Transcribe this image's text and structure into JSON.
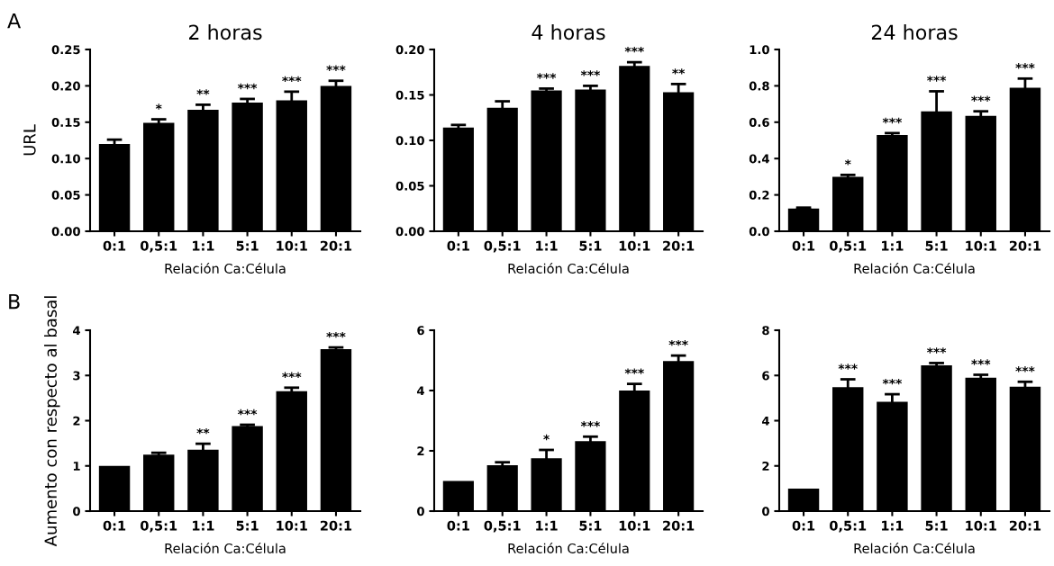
{
  "chart_data": [
    {
      "type": "bar",
      "title": "2 horas",
      "xlabel": "Relación Ca:Célula",
      "ylabel": "URL",
      "annotations": [
        "A"
      ],
      "categories": [
        "0:1",
        "0,5:1",
        "1:1",
        "5:1",
        "10:1",
        "20:1"
      ],
      "color": "#000000",
      "values": [
        0.12,
        0.149,
        0.167,
        0.177,
        0.18,
        0.2
      ],
      "errors": [
        0.006,
        0.005,
        0.007,
        0.005,
        0.012,
        0.007
      ],
      "value_labels": [
        null,
        "*",
        "**",
        "***",
        "***",
        "***"
      ],
      "ylim": [
        0,
        0.25
      ],
      "yticks": [
        {
          "value": 0,
          "label": "0.00"
        },
        {
          "value": 0.05,
          "label": "0.05"
        },
        {
          "value": 0.1,
          "label": "0.10"
        },
        {
          "value": 0.15,
          "label": "0.15"
        },
        {
          "value": 0.2,
          "label": "0.20"
        },
        {
          "value": 0.25,
          "label": "0.25"
        }
      ],
      "grid": false,
      "legend": false
    },
    {
      "type": "bar",
      "title": "4 horas",
      "xlabel": "Relación Ca:Célula",
      "categories": [
        "0:1",
        "0,5:1",
        "1:1",
        "5:1",
        "10:1",
        "20:1"
      ],
      "color": "#000000",
      "values": [
        0.114,
        0.136,
        0.155,
        0.156,
        0.182,
        0.153
      ],
      "errors": [
        0.003,
        0.007,
        0.002,
        0.004,
        0.004,
        0.009
      ],
      "value_labels": [
        null,
        null,
        "***",
        "***",
        "***",
        "**"
      ],
      "ylim": [
        0,
        0.2
      ],
      "yticks": [
        {
          "value": 0,
          "label": "0.00"
        },
        {
          "value": 0.05,
          "label": "0.05"
        },
        {
          "value": 0.1,
          "label": "0.10"
        },
        {
          "value": 0.15,
          "label": "0.15"
        },
        {
          "value": 0.2,
          "label": "0.20"
        }
      ],
      "grid": false,
      "legend": false
    },
    {
      "type": "bar",
      "title": "24 horas",
      "xlabel": "Relación Ca:Célula",
      "categories": [
        "0:1",
        "0,5:1",
        "1:1",
        "5:1",
        "10:1",
        "20:1"
      ],
      "color": "#000000",
      "values": [
        0.125,
        0.3,
        0.53,
        0.66,
        0.635,
        0.79
      ],
      "errors": [
        0.005,
        0.01,
        0.01,
        0.11,
        0.025,
        0.05
      ],
      "value_labels": [
        null,
        "*",
        "***",
        "***",
        "***",
        "***"
      ],
      "ylim": [
        0,
        1.0
      ],
      "yticks": [
        {
          "value": 0,
          "label": "0.0"
        },
        {
          "value": 0.2,
          "label": "0.2"
        },
        {
          "value": 0.4,
          "label": "0.4"
        },
        {
          "value": 0.6,
          "label": "0.6"
        },
        {
          "value": 0.8,
          "label": "0.8"
        },
        {
          "value": 1.0,
          "label": "1.0"
        }
      ],
      "grid": false,
      "legend": false
    },
    {
      "type": "bar",
      "xlabel": "Relación Ca:Célula",
      "ylabel": "Aumento con respecto al basal",
      "annotations": [
        "B"
      ],
      "categories": [
        "0:1",
        "0,5:1",
        "1:1",
        "5:1",
        "10:1",
        "20:1"
      ],
      "color": "#000000",
      "values": [
        1,
        1.25,
        1.36,
        1.88,
        2.65,
        3.58
      ],
      "errors": [
        null,
        0.04,
        0.13,
        0.03,
        0.08,
        0.04
      ],
      "value_labels": [
        null,
        null,
        "**",
        "***",
        "***",
        "***"
      ],
      "ylim": [
        0,
        4
      ],
      "yticks": [
        0,
        1,
        2,
        3,
        4
      ],
      "grid": false,
      "legend": false
    },
    {
      "type": "bar",
      "xlabel": "Relación Ca:Célula",
      "categories": [
        "0:1",
        "0,5:1",
        "1:1",
        "5:1",
        "10:1",
        "20:1"
      ],
      "color": "#000000",
      "values": [
        1,
        1.52,
        1.75,
        2.32,
        4.0,
        4.98
      ],
      "errors": [
        null,
        0.1,
        0.28,
        0.15,
        0.22,
        0.18
      ],
      "value_labels": [
        null,
        null,
        "*",
        "***",
        "***",
        "***"
      ],
      "ylim": [
        0,
        6
      ],
      "yticks": [
        0,
        2,
        4,
        6
      ],
      "grid": false,
      "legend": false
    },
    {
      "type": "bar",
      "xlabel": "Relación Ca:Célula",
      "categories": [
        "0:1",
        "0,5:1",
        "1:1",
        "5:1",
        "10:1",
        "20:1"
      ],
      "color": "#000000",
      "values": [
        1,
        5.48,
        4.84,
        6.45,
        5.9,
        5.5
      ],
      "errors": [
        null,
        0.35,
        0.33,
        0.1,
        0.13,
        0.22
      ],
      "value_labels": [
        null,
        "***",
        "***",
        "***",
        "***",
        "***"
      ],
      "ylim": [
        0,
        8
      ],
      "yticks": [
        0,
        2,
        4,
        6,
        8
      ],
      "grid": false,
      "legend": false
    }
  ]
}
